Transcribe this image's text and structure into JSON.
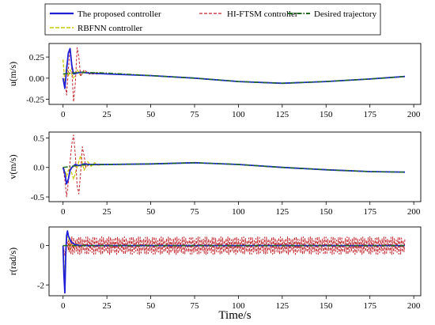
{
  "colors": {
    "proposed": "#1f1fd6",
    "hiftsm": "#c0222a",
    "rbfnn": "#c8c800",
    "desired": "#1f6b1f",
    "axis": "#000000",
    "background": "#ffffff"
  },
  "legend": {
    "items": [
      {
        "key": "proposed",
        "label": "The proposed controller",
        "style": "solid"
      },
      {
        "key": "hiftsm",
        "label": "HI-FTSM controller",
        "style": "dashed"
      },
      {
        "key": "desired",
        "label": "Desired trajectory",
        "style": "dashdot"
      },
      {
        "key": "rbfnn",
        "label": "RBFNN controller",
        "style": "dashed"
      }
    ]
  },
  "x_axis_label": "Time/s",
  "chart_data": [
    {
      "type": "line",
      "ylabel": "u(m/s)",
      "xlim": [
        -8,
        204
      ],
      "ylim": [
        -0.31,
        0.41
      ],
      "xticks": [
        "0",
        "25",
        "50",
        "75",
        "100",
        "125",
        "150",
        "175",
        "200"
      ],
      "yticks": [
        "0.25",
        "0.00",
        "-0.25"
      ],
      "ytick_values": [
        0.25,
        0.0,
        -0.25
      ],
      "series": [
        {
          "name": "The proposed controller",
          "key": "proposed",
          "x": [
            0,
            1,
            2,
            3,
            4,
            5,
            6,
            8,
            10,
            15,
            25,
            50,
            75,
            100,
            125,
            150,
            175,
            195
          ],
          "y": [
            0.0,
            -0.12,
            0.1,
            0.3,
            0.35,
            0.15,
            0.05,
            0.06,
            0.07,
            0.06,
            0.05,
            0.03,
            0.0,
            -0.04,
            -0.06,
            -0.04,
            -0.01,
            0.02
          ]
        },
        {
          "name": "HI-FTSM controller",
          "key": "hiftsm",
          "x": [
            0,
            1,
            2,
            3,
            4,
            5,
            6,
            7,
            8,
            9,
            10,
            12,
            15,
            25,
            50,
            75,
            100,
            125,
            150,
            175,
            195
          ],
          "y": [
            0.0,
            -0.05,
            -0.2,
            0.1,
            0.35,
            0.1,
            -0.28,
            -0.05,
            0.36,
            0.25,
            0.02,
            0.1,
            0.05,
            0.05,
            0.03,
            0.0,
            -0.04,
            -0.06,
            -0.04,
            -0.01,
            0.02
          ]
        },
        {
          "name": "Desired trajectory",
          "key": "desired",
          "x": [
            0,
            5,
            10,
            25,
            50,
            75,
            100,
            125,
            150,
            175,
            195
          ],
          "y": [
            0.05,
            0.06,
            0.07,
            0.06,
            0.03,
            0.0,
            -0.04,
            -0.06,
            -0.04,
            -0.01,
            0.02
          ]
        },
        {
          "name": "RBFNN controller",
          "key": "rbfnn",
          "x": [
            0,
            1,
            2,
            3,
            4,
            6,
            8,
            10,
            12,
            15,
            20,
            25,
            50,
            75,
            100,
            125,
            150,
            175,
            195
          ],
          "y": [
            0.22,
            -0.05,
            0.15,
            0.02,
            0.1,
            0.0,
            0.1,
            0.03,
            0.08,
            0.05,
            0.07,
            0.05,
            0.03,
            0.0,
            -0.04,
            -0.06,
            -0.04,
            -0.01,
            0.02
          ]
        }
      ]
    },
    {
      "type": "line",
      "ylabel": "v(m/s)",
      "xlim": [
        -8,
        204
      ],
      "ylim": [
        -0.58,
        0.6
      ],
      "xticks": [
        "0",
        "25",
        "50",
        "75",
        "100",
        "125",
        "150",
        "175",
        "200"
      ],
      "yticks": [
        "0.5",
        "0.0",
        "-0.5"
      ],
      "ytick_values": [
        0.5,
        0.0,
        -0.5
      ],
      "series": [
        {
          "name": "The proposed controller",
          "key": "proposed",
          "x": [
            0,
            1,
            2,
            3,
            4,
            5,
            7,
            9,
            12,
            15,
            25,
            50,
            75,
            100,
            125,
            150,
            175,
            195
          ],
          "y": [
            0.0,
            -0.1,
            -0.28,
            -0.2,
            -0.05,
            0.0,
            0.05,
            0.03,
            0.06,
            0.05,
            0.05,
            0.06,
            0.08,
            0.05,
            0.0,
            -0.04,
            -0.07,
            -0.08
          ]
        },
        {
          "name": "HI-FTSM controller",
          "key": "hiftsm",
          "x": [
            0,
            1,
            2,
            3,
            4,
            5,
            6,
            7,
            8,
            9,
            10,
            11,
            12,
            13,
            15,
            20,
            25,
            50,
            75,
            100,
            125,
            150,
            175,
            195
          ],
          "y": [
            0.0,
            -0.2,
            -0.5,
            -0.25,
            0.1,
            0.4,
            0.55,
            0.2,
            -0.3,
            -0.45,
            -0.1,
            0.35,
            0.2,
            0.0,
            0.05,
            0.04,
            0.05,
            0.06,
            0.08,
            0.05,
            0.0,
            -0.04,
            -0.07,
            -0.08
          ]
        },
        {
          "name": "Desired trajectory",
          "key": "desired",
          "x": [
            0,
            5,
            10,
            25,
            50,
            75,
            100,
            125,
            150,
            175,
            195
          ],
          "y": [
            0.0,
            0.02,
            0.04,
            0.05,
            0.06,
            0.08,
            0.05,
            0.0,
            -0.04,
            -0.07,
            -0.08
          ]
        },
        {
          "name": "RBFNN controller",
          "key": "rbfnn",
          "x": [
            0,
            1,
            2,
            3,
            4,
            6,
            8,
            10,
            12,
            14,
            16,
            18,
            20,
            25,
            50,
            75,
            100,
            125,
            150,
            175,
            195
          ],
          "y": [
            0.0,
            -0.05,
            -0.15,
            -0.05,
            0.0,
            -0.2,
            0.0,
            0.2,
            -0.05,
            0.1,
            0.02,
            0.08,
            0.04,
            0.05,
            0.06,
            0.08,
            0.05,
            0.0,
            -0.04,
            -0.07,
            -0.08
          ]
        }
      ]
    },
    {
      "type": "line",
      "ylabel": "r(rad/s)",
      "xlim": [
        -8,
        204
      ],
      "ylim": [
        -2.55,
        0.95
      ],
      "xticks": [
        "0",
        "25",
        "50",
        "75",
        "100",
        "125",
        "150",
        "175",
        "200"
      ],
      "yticks": [
        "0",
        "-2"
      ],
      "ytick_values": [
        0,
        -2
      ],
      "series": [
        {
          "name": "The proposed controller",
          "key": "proposed",
          "x": [
            0,
            0.5,
            1,
            1.5,
            2,
            2.5,
            3,
            4,
            5,
            7,
            10,
            195
          ],
          "y": [
            0.0,
            -1.5,
            -2.4,
            -0.5,
            0.5,
            0.75,
            0.5,
            0.3,
            0.15,
            0.05,
            0.0,
            0.0
          ]
        },
        {
          "name": "HI-FTSM controller",
          "key": "hiftsm",
          "oscillation": {
            "from": 3,
            "to": 195,
            "center": 0.0,
            "amplitude": 0.45
          },
          "x": [
            0,
            1,
            2,
            3
          ],
          "y": [
            0.0,
            -0.5,
            0.4,
            -0.2
          ]
        },
        {
          "name": "Desired trajectory",
          "key": "desired",
          "x": [
            0,
            195
          ],
          "y": [
            0.0,
            0.0
          ]
        },
        {
          "name": "RBFNN controller",
          "key": "rbfnn",
          "x": [
            0,
            1,
            2,
            3,
            4,
            5,
            6,
            8,
            10,
            12,
            15,
            20,
            195
          ],
          "y": [
            0.0,
            -1.6,
            0.3,
            0.5,
            -0.2,
            0.2,
            -0.1,
            0.1,
            -0.05,
            0.05,
            0.0,
            0.0,
            0.0
          ]
        }
      ]
    }
  ]
}
